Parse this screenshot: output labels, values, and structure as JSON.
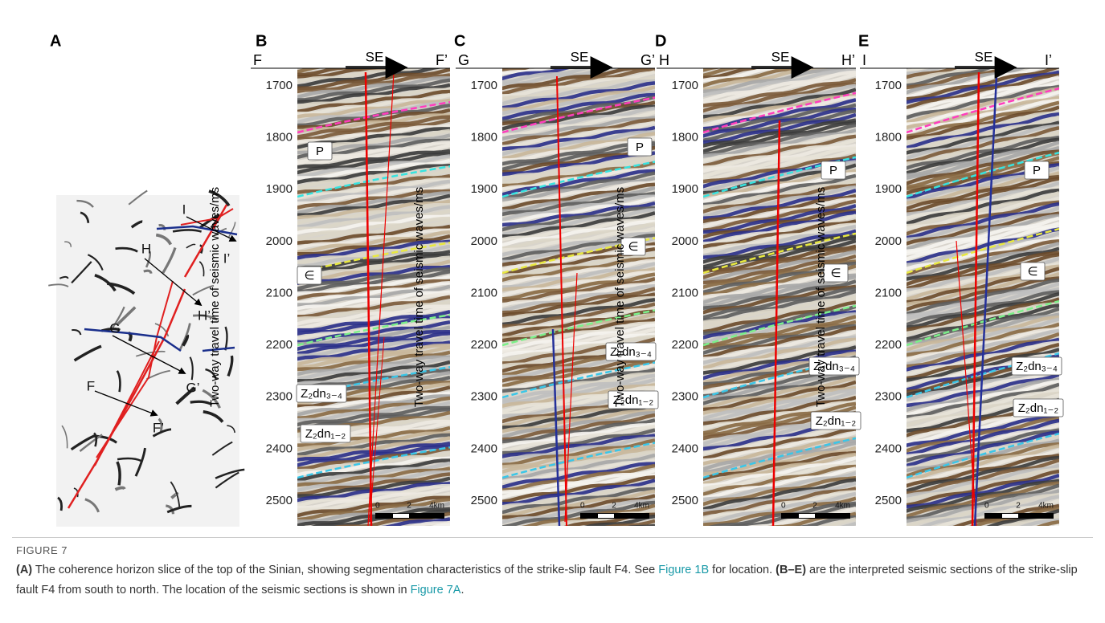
{
  "figure": {
    "panels": [
      {
        "letter": "A",
        "map_labels": [
          "I",
          "I’",
          "H",
          "H’",
          "G",
          "G’",
          "F",
          "F’"
        ]
      },
      {
        "letter": "B",
        "start": "F",
        "end": "F’",
        "direction": "SE",
        "y_axis_label": "Two-way travel time of seismic waves/ms",
        "yticks": [
          1700,
          1800,
          1900,
          2000,
          2100,
          2200,
          2300,
          2400,
          2500
        ],
        "horizons": [
          "P",
          "∈",
          "Z₂dn₃₋₄",
          "Z₂dn₁₋₂"
        ],
        "scale_bar": [
          "0",
          "2",
          "4km"
        ]
      },
      {
        "letter": "C",
        "start": "G",
        "end": "G’",
        "direction": "SE",
        "y_axis_label": "Two-way travel time of seismic waves/ms",
        "yticks": [
          1700,
          1800,
          1900,
          2000,
          2100,
          2200,
          2300,
          2400,
          2500
        ],
        "horizons": [
          "P",
          "∈",
          "Z₂dn₃₋₄",
          "Z₂dn₁₋₂"
        ],
        "scale_bar": [
          "0",
          "2",
          "4km"
        ]
      },
      {
        "letter": "D",
        "start": "H",
        "end": "H’",
        "direction": "SE",
        "y_axis_label": "Two-way travel time of seismic waves/ms",
        "yticks": [
          1700,
          1800,
          1900,
          2000,
          2100,
          2200,
          2300,
          2400,
          2500
        ],
        "horizons": [
          "P",
          "∈",
          "Z₂dn₃₋₄",
          "Z₂dn₁₋₂"
        ],
        "scale_bar": [
          "0",
          "2",
          "4km"
        ]
      },
      {
        "letter": "E",
        "start": "I",
        "end": "I’",
        "direction": "SE",
        "y_axis_label": "Two-way travel time of seismic waves/ms",
        "yticks": [
          1700,
          1800,
          1900,
          2000,
          2100,
          2200,
          2300,
          2400,
          2500
        ],
        "horizons": [
          "P",
          "∈",
          "Z₂dn₃₋₄",
          "Z₂dn₁₋₂"
        ],
        "scale_bar": [
          "0",
          "2",
          "4km"
        ]
      }
    ],
    "label": "FIGURE 7",
    "caption": [
      "(A)",
      " The coherence horizon slice of the top of the Sinian, showing segmentation characteristics of the strike-slip fault F4. See ",
      "Figure 1B",
      " for location. ",
      "(B–E)",
      " are the interpreted seismic sections of the strike-slip fault F4 from south to north. The location of the seismic sections is shown in ",
      "Figure 7A",
      "."
    ]
  }
}
